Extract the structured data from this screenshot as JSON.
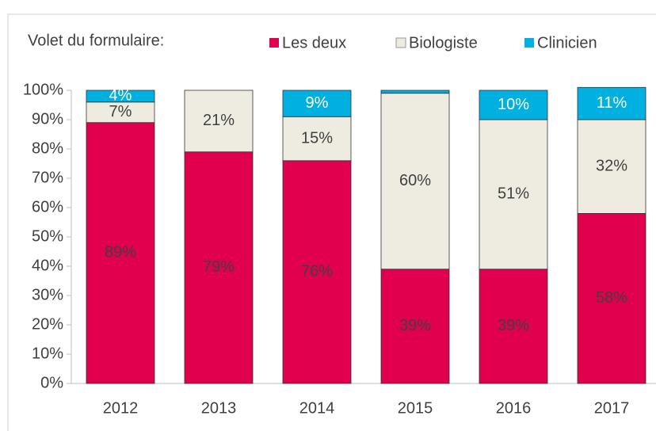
{
  "chart_data": {
    "type": "stacked_bar",
    "legend_title": "Volet du formulaire:",
    "categories": [
      "2012",
      "2013",
      "2014",
      "2015",
      "2016",
      "2017"
    ],
    "series": [
      {
        "name": "Les deux",
        "color": "#e0004d",
        "values": [
          89,
          79,
          76,
          39,
          39,
          58
        ],
        "value_labels": [
          "89%",
          "79%",
          "76%",
          "39%",
          "39%",
          "58%"
        ]
      },
      {
        "name": "Biologiste",
        "color": "#eeece1",
        "values": [
          7,
          21,
          15,
          60,
          51,
          32
        ],
        "value_labels": [
          "7%",
          "21%",
          "15%",
          "60%",
          "51%",
          "32%"
        ]
      },
      {
        "name": "Clinicien",
        "color": "#00b0e0",
        "values": [
          4,
          null,
          9,
          1,
          10,
          11
        ],
        "value_labels": [
          "4%",
          null,
          "9%",
          "1%",
          "10%",
          "11%"
        ]
      }
    ],
    "ylim": [
      0,
      100
    ],
    "yticks": [
      {
        "value": 0,
        "label": "0%"
      },
      {
        "value": 10,
        "label": "10%"
      },
      {
        "value": 20,
        "label": "20%"
      },
      {
        "value": 30,
        "label": "30%"
      },
      {
        "value": 40,
        "label": "40%"
      },
      {
        "value": 50,
        "label": "50%"
      },
      {
        "value": 60,
        "label": "60%"
      },
      {
        "value": 70,
        "label": "70%"
      },
      {
        "value": 80,
        "label": "80%"
      },
      {
        "value": 90,
        "label": "90%"
      },
      {
        "value": 100,
        "label": "100%"
      }
    ],
    "legend": "top"
  }
}
